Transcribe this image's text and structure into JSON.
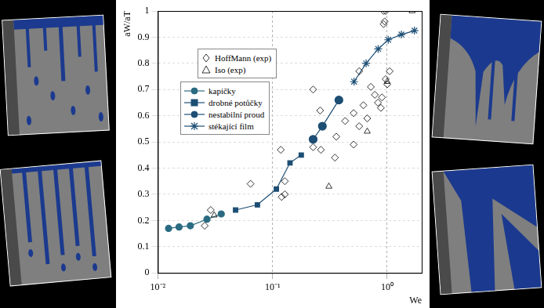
{
  "chart_data": {
    "type": "scatter",
    "xlabel": "We",
    "ylabel": "aW/aT",
    "log": "x",
    "grid": true,
    "legend": "upper left",
    "xlim": [
      0.01,
      2
    ],
    "xticks": [
      {
        "value": 0.01,
        "label": "10⁻²"
      },
      {
        "value": 0.1,
        "label": "10⁻¹"
      },
      {
        "value": 1,
        "label": "10⁰"
      }
    ],
    "ylim": [
      0,
      1
    ],
    "yticks": [
      0,
      0.1,
      0.2,
      0.3,
      0.4,
      0.5,
      0.6,
      0.7,
      0.8,
      0.9,
      1
    ],
    "series": [
      {
        "name": "HoffMann (exp)",
        "color": "#000000",
        "marker": "open_diamond",
        "line_style": "none",
        "x": [
          0.0256,
          0.0289,
          0.0643,
          0.118,
          0.12,
          0.128,
          0.128,
          0.226,
          0.226,
          0.26,
          0.264,
          0.35,
          0.36,
          0.43,
          0.51,
          0.51,
          0.57,
          0.57,
          0.62,
          0.67,
          0.72,
          0.78,
          0.83,
          0.88,
          0.9,
          0.93,
          0.95,
          0.93,
          0.97,
          0.97,
          1.0,
          1.05
        ],
        "values": [
          0.18,
          0.24,
          0.34,
          0.47,
          0.29,
          0.3,
          0.35,
          0.7,
          0.48,
          0.62,
          0.47,
          0.44,
          0.52,
          0.58,
          0.61,
          0.49,
          0.77,
          0.56,
          0.64,
          0.59,
          0.71,
          0.68,
          0.65,
          0.63,
          0.67,
          0.95,
          0.96,
          1.0,
          1.0,
          0.74,
          0.72,
          0.77
        ]
      },
      {
        "name": "Iso (exp)",
        "color": "#000000",
        "marker": "open_triangle",
        "line_style": "none",
        "x": [
          0.031,
          0.31,
          0.67,
          1.0,
          1.65
        ],
        "values": [
          0.22,
          0.33,
          0.54,
          0.73,
          1.0
        ]
      },
      {
        "name": "kapičky",
        "color": "#2a6b82",
        "marker": "circle",
        "line_style": "solid",
        "x": [
          0.0124,
          0.0153,
          0.0192,
          0.0268,
          0.0357
        ],
        "values": [
          0.17,
          0.175,
          0.18,
          0.205,
          0.225
        ]
      },
      {
        "name": "drobné potůčky",
        "color": "#1d4e74",
        "marker": "square",
        "line_style": "solid",
        "x": [
          0.0476,
          0.0738,
          0.108,
          0.142,
          0.178
        ],
        "values": [
          0.24,
          0.26,
          0.32,
          0.42,
          0.45
        ]
      },
      {
        "name": "nestabilní proud",
        "color": "#1d4e74",
        "marker": "circle",
        "line_style": "solid",
        "x": [
          0.226,
          0.272,
          0.379
        ],
        "values": [
          0.51,
          0.56,
          0.66
        ]
      },
      {
        "name": "stékající film",
        "color": "#1d4e74",
        "marker": "star",
        "line_style": "solid",
        "x": [
          0.514,
          0.655,
          0.834,
          1.02,
          1.33,
          1.73
        ],
        "values": [
          0.73,
          0.8,
          0.855,
          0.89,
          0.91,
          0.925
        ]
      }
    ]
  }
}
